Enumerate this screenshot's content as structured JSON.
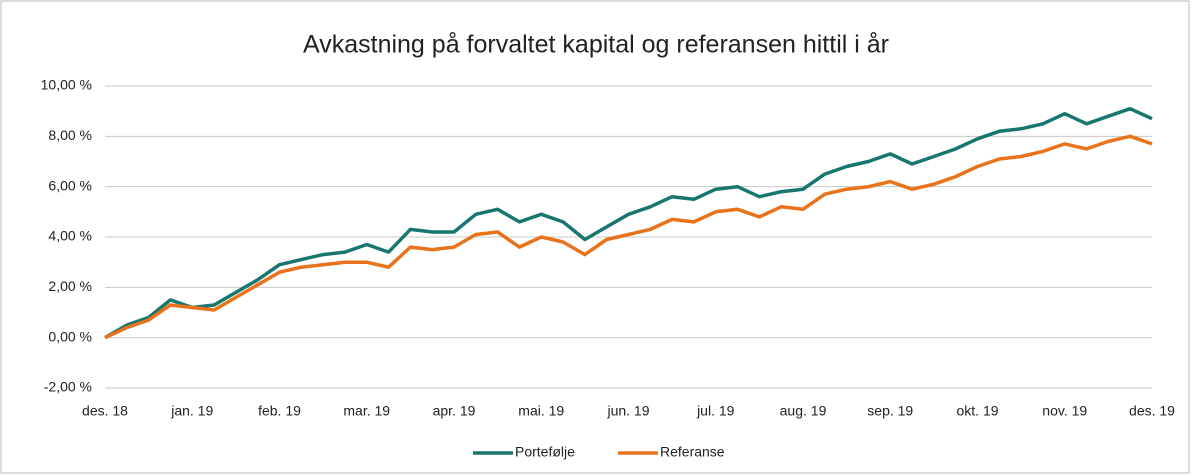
{
  "chart_data": {
    "type": "line",
    "title": "Avkastning på forvaltet kapital og referansen hittil i år",
    "categories": [
      "des. 18",
      null,
      null,
      null,
      "jan. 19",
      null,
      null,
      null,
      "feb. 19",
      null,
      null,
      null,
      "mar. 19",
      null,
      null,
      null,
      "apr. 19",
      null,
      null,
      null,
      "mai. 19",
      null,
      null,
      null,
      "jun. 19",
      null,
      null,
      null,
      "jul. 19",
      null,
      null,
      null,
      "aug. 19",
      null,
      null,
      null,
      "sep. 19",
      null,
      null,
      null,
      "okt. 19",
      null,
      null,
      null,
      "nov. 19",
      null,
      null,
      null,
      "des. 19"
    ],
    "series": [
      {
        "name": "Portefølje",
        "color": "#17776f",
        "values": [
          0.0,
          0.5,
          0.8,
          1.5,
          1.2,
          1.3,
          1.8,
          2.3,
          2.9,
          3.1,
          3.3,
          3.4,
          3.7,
          3.4,
          4.3,
          4.2,
          4.2,
          4.9,
          5.1,
          4.6,
          4.9,
          4.6,
          3.9,
          4.4,
          4.9,
          5.2,
          5.6,
          5.5,
          5.9,
          6.0,
          5.6,
          5.8,
          5.9,
          6.5,
          6.8,
          7.0,
          7.3,
          6.9,
          7.2,
          7.5,
          7.9,
          8.2,
          8.3,
          8.5,
          8.9,
          8.5,
          8.8,
          9.1,
          8.7
        ]
      },
      {
        "name": "Referanse",
        "color": "#e8731a",
        "values": [
          0.0,
          0.4,
          0.7,
          1.3,
          1.2,
          1.1,
          1.6,
          2.1,
          2.6,
          2.8,
          2.9,
          3.0,
          3.0,
          2.8,
          3.6,
          3.5,
          3.6,
          4.1,
          4.2,
          3.6,
          4.0,
          3.8,
          3.3,
          3.9,
          4.1,
          4.3,
          4.7,
          4.6,
          5.0,
          5.1,
          4.8,
          5.2,
          5.1,
          5.7,
          5.9,
          6.0,
          6.2,
          5.9,
          6.1,
          6.4,
          6.8,
          7.1,
          7.2,
          7.4,
          7.7,
          7.5,
          7.8,
          8.0,
          7.7
        ]
      }
    ],
    "ylim": [
      -2,
      10
    ],
    "yticks": [
      {
        "value": -2,
        "label": "-2,00 %"
      },
      {
        "value": 0,
        "label": "0,00 %"
      },
      {
        "value": 2,
        "label": "2,00 %"
      },
      {
        "value": 4,
        "label": "4,00 %"
      },
      {
        "value": 6,
        "label": "6,00 %"
      },
      {
        "value": 8,
        "label": "8,00 %"
      },
      {
        "value": 10,
        "label": "10,00 %"
      }
    ],
    "grid": true,
    "legend": "bottom"
  }
}
